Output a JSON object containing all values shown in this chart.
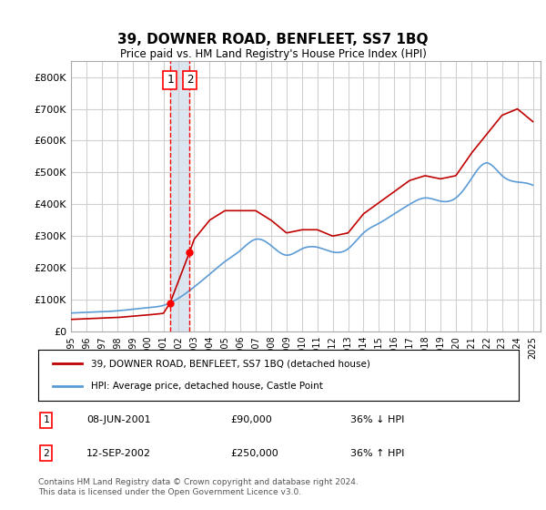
{
  "title": "39, DOWNER ROAD, BENFLEET, SS7 1BQ",
  "subtitle": "Price paid vs. HM Land Registry's House Price Index (HPI)",
  "legend_line1": "39, DOWNER ROAD, BENFLEET, SS7 1BQ (detached house)",
  "legend_line2": "HPI: Average price, detached house, Castle Point",
  "transaction1_label": "1",
  "transaction1_date": "08-JUN-2001",
  "transaction1_price": "£90,000",
  "transaction1_hpi": "36% ↓ HPI",
  "transaction2_label": "2",
  "transaction2_date": "12-SEP-2002",
  "transaction2_price": "£250,000",
  "transaction2_hpi": "36% ↑ HPI",
  "footer": "Contains HM Land Registry data © Crown copyright and database right 2024.\nThis data is licensed under the Open Government Licence v3.0.",
  "hpi_color": "#5b9bd5",
  "price_color": "#c00000",
  "transaction1_color": "#ff0000",
  "transaction2_color": "#ff0000",
  "shading_color": "#dce6f1",
  "grid_color": "#d0d0d0",
  "ylim": [
    0,
    850000
  ],
  "yticks": [
    0,
    100000,
    200000,
    300000,
    400000,
    500000,
    600000,
    700000,
    800000
  ],
  "ytick_labels": [
    "£0",
    "£100K",
    "£200K",
    "£300K",
    "£400K",
    "£500K",
    "£600K",
    "£700K",
    "£800K"
  ],
  "xlim_start": 1995.0,
  "xlim_end": 2025.5,
  "background_color": "#ffffff",
  "transaction1_x": 2001.44,
  "transaction1_y": 90000,
  "transaction2_x": 2002.71,
  "transaction2_y": 250000
}
